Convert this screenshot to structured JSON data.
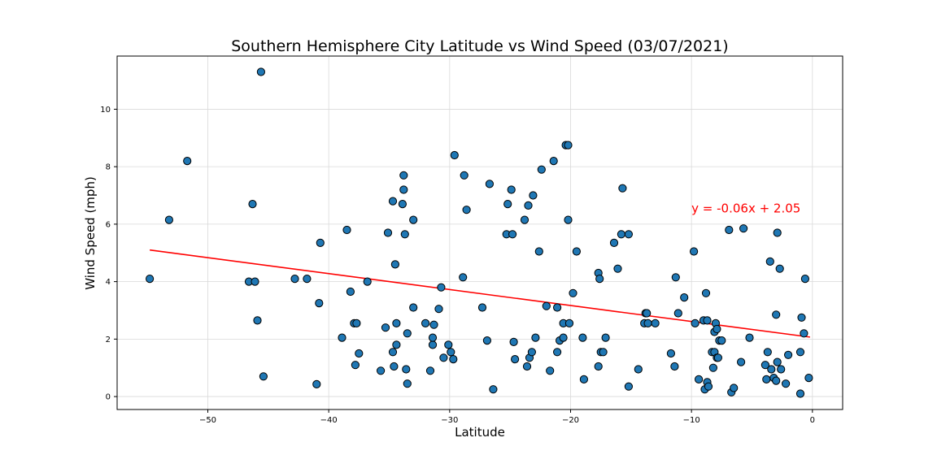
{
  "chart_data": {
    "type": "scatter",
    "title": "Southern Hemisphere City Latitude vs Wind Speed (03/07/2021)",
    "xlabel": "Latitude",
    "ylabel": "Wind Speed (mph)",
    "xlim": [
      -57.5,
      2.5
    ],
    "ylim": [
      -0.45,
      11.85
    ],
    "xticks": [
      -50,
      -40,
      -30,
      -20,
      -10,
      0
    ],
    "yticks": [
      0,
      2,
      4,
      6,
      8,
      10
    ],
    "grid": true,
    "point_color": "#1f77b4",
    "regression": {
      "slope": -0.06,
      "intercept": 2.05,
      "x_range": [
        -54.8,
        -0.2
      ],
      "y_range": [
        5.1,
        2.07
      ],
      "color": "#ff0000",
      "label": "y = -0.06x + 2.05",
      "label_anchor": [
        -10,
        6.4
      ]
    },
    "points": [
      [
        -54.8,
        4.1
      ],
      [
        -53.2,
        6.15
      ],
      [
        -51.7,
        8.2
      ],
      [
        -46.6,
        4.0
      ],
      [
        -46.3,
        6.7
      ],
      [
        -46.1,
        4.0
      ],
      [
        -45.9,
        2.65
      ],
      [
        -45.6,
        11.3
      ],
      [
        -45.4,
        0.7
      ],
      [
        -42.8,
        4.1
      ],
      [
        -41.8,
        4.1
      ],
      [
        -41.0,
        0.43
      ],
      [
        -40.8,
        3.25
      ],
      [
        -40.7,
        5.35
      ],
      [
        -38.9,
        2.05
      ],
      [
        -38.5,
        5.8
      ],
      [
        -38.2,
        3.65
      ],
      [
        -37.9,
        2.55
      ],
      [
        -37.8,
        1.1
      ],
      [
        -37.7,
        2.55
      ],
      [
        -37.5,
        1.5
      ],
      [
        -36.8,
        4.0
      ],
      [
        -35.7,
        0.9
      ],
      [
        -35.3,
        2.4
      ],
      [
        -35.1,
        5.7
      ],
      [
        -34.7,
        1.55
      ],
      [
        -34.7,
        6.8
      ],
      [
        -34.6,
        1.05
      ],
      [
        -34.5,
        4.6
      ],
      [
        -34.4,
        2.55
      ],
      [
        -34.4,
        1.8
      ],
      [
        -33.9,
        6.7
      ],
      [
        -33.8,
        7.2
      ],
      [
        -33.8,
        7.7
      ],
      [
        -33.7,
        5.65
      ],
      [
        -33.6,
        0.95
      ],
      [
        -33.5,
        0.45
      ],
      [
        -33.5,
        2.2
      ],
      [
        -33.0,
        6.15
      ],
      [
        -33.0,
        3.1
      ],
      [
        -32.0,
        2.55
      ],
      [
        -31.6,
        0.9
      ],
      [
        -31.4,
        1.8
      ],
      [
        -31.4,
        2.05
      ],
      [
        -31.3,
        2.5
      ],
      [
        -30.9,
        3.05
      ],
      [
        -30.7,
        3.8
      ],
      [
        -30.5,
        1.35
      ],
      [
        -30.1,
        1.8
      ],
      [
        -29.9,
        1.55
      ],
      [
        -29.7,
        1.3
      ],
      [
        -29.6,
        8.4
      ],
      [
        -28.9,
        4.15
      ],
      [
        -28.8,
        7.7
      ],
      [
        -28.6,
        6.5
      ],
      [
        -27.3,
        3.1
      ],
      [
        -26.9,
        1.95
      ],
      [
        -26.7,
        7.4
      ],
      [
        -26.4,
        0.25
      ],
      [
        -25.3,
        5.65
      ],
      [
        -25.2,
        6.7
      ],
      [
        -24.9,
        7.2
      ],
      [
        -24.8,
        5.65
      ],
      [
        -24.7,
        1.9
      ],
      [
        -24.6,
        1.3
      ],
      [
        -23.8,
        6.15
      ],
      [
        -23.6,
        1.05
      ],
      [
        -23.5,
        6.65
      ],
      [
        -23.4,
        1.35
      ],
      [
        -23.2,
        1.55
      ],
      [
        -23.1,
        7.0
      ],
      [
        -22.9,
        2.05
      ],
      [
        -22.6,
        5.05
      ],
      [
        -22.4,
        7.9
      ],
      [
        -22.0,
        3.15
      ],
      [
        -21.7,
        0.9
      ],
      [
        -21.4,
        8.2
      ],
      [
        -21.1,
        3.1
      ],
      [
        -21.1,
        1.55
      ],
      [
        -20.9,
        1.95
      ],
      [
        -20.6,
        2.05
      ],
      [
        -20.6,
        2.55
      ],
      [
        -20.4,
        8.75
      ],
      [
        -20.2,
        8.75
      ],
      [
        -20.2,
        6.15
      ],
      [
        -20.1,
        2.55
      ],
      [
        -19.8,
        3.6
      ],
      [
        -19.5,
        5.05
      ],
      [
        -19.0,
        2.05
      ],
      [
        -18.9,
        0.6
      ],
      [
        -17.7,
        1.05
      ],
      [
        -17.7,
        4.3
      ],
      [
        -17.6,
        4.1
      ],
      [
        -17.5,
        1.55
      ],
      [
        -17.3,
        1.55
      ],
      [
        -17.1,
        2.05
      ],
      [
        -16.4,
        5.35
      ],
      [
        -16.1,
        4.45
      ],
      [
        -15.8,
        5.65
      ],
      [
        -15.7,
        7.25
      ],
      [
        -15.2,
        5.65
      ],
      [
        -15.2,
        0.35
      ],
      [
        -14.4,
        0.95
      ],
      [
        -13.9,
        2.55
      ],
      [
        -13.8,
        2.9
      ],
      [
        -13.7,
        2.9
      ],
      [
        -13.6,
        2.55
      ],
      [
        -13.0,
        2.55
      ],
      [
        -11.7,
        1.5
      ],
      [
        -11.4,
        1.05
      ],
      [
        -11.3,
        4.15
      ],
      [
        -11.1,
        2.9
      ],
      [
        -10.6,
        3.45
      ],
      [
        -9.8,
        5.05
      ],
      [
        -9.7,
        2.55
      ],
      [
        -9.4,
        0.6
      ],
      [
        -9.0,
        2.65
      ],
      [
        -8.9,
        0.25
      ],
      [
        -8.8,
        3.6
      ],
      [
        -8.7,
        2.65
      ],
      [
        -8.7,
        0.5
      ],
      [
        -8.6,
        0.35
      ],
      [
        -8.3,
        1.55
      ],
      [
        -8.2,
        1.0
      ],
      [
        -8.1,
        1.55
      ],
      [
        -8.1,
        2.25
      ],
      [
        -8.0,
        2.55
      ],
      [
        -7.9,
        2.35
      ],
      [
        -7.9,
        1.35
      ],
      [
        -7.8,
        1.35
      ],
      [
        -7.7,
        1.95
      ],
      [
        -7.5,
        1.95
      ],
      [
        -6.9,
        5.8
      ],
      [
        -6.7,
        0.15
      ],
      [
        -6.5,
        0.3
      ],
      [
        -5.9,
        1.2
      ],
      [
        -5.7,
        5.85
      ],
      [
        -5.2,
        2.05
      ],
      [
        -3.9,
        1.1
      ],
      [
        -3.8,
        0.6
      ],
      [
        -3.7,
        1.55
      ],
      [
        -3.5,
        4.7
      ],
      [
        -3.4,
        0.95
      ],
      [
        -3.2,
        0.65
      ],
      [
        -3.0,
        0.55
      ],
      [
        -3.0,
        2.85
      ],
      [
        -2.9,
        5.7
      ],
      [
        -2.9,
        1.2
      ],
      [
        -2.7,
        4.45
      ],
      [
        -2.6,
        0.95
      ],
      [
        -2.2,
        0.45
      ],
      [
        -2.0,
        1.45
      ],
      [
        -1.0,
        1.55
      ],
      [
        -1.0,
        0.1
      ],
      [
        -0.9,
        2.75
      ],
      [
        -0.7,
        2.2
      ],
      [
        -0.6,
        4.1
      ],
      [
        -0.3,
        0.65
      ]
    ]
  }
}
